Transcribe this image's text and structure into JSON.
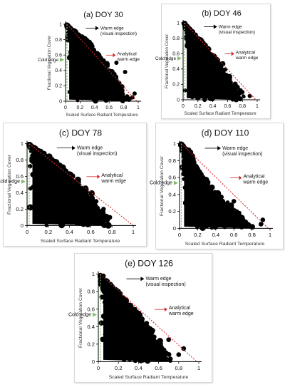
{
  "chart_data": [
    {
      "type": "scatter",
      "title": "(a) DOY 30",
      "xlabel": "Scaled Surface Radiant Temperature",
      "ylabel": "Fractional Vegetation Cover",
      "xticks": [
        "0",
        "0.2",
        "0.4",
        "0.6",
        "0.8",
        "1"
      ],
      "yticks": [
        "0",
        "0.2",
        "0.4",
        "0.6",
        "0.8",
        "1"
      ],
      "xlim": [
        0,
        1
      ],
      "ylim": [
        0,
        1
      ],
      "point_cloud": {
        "lower_envelope_x": 0.02,
        "warm_limit": [
          [
            0.0,
            1.0
          ],
          [
            0.35,
            0.75
          ],
          [
            0.6,
            0.45
          ],
          [
            0.78,
            0.2
          ],
          [
            0.88,
            0.05
          ],
          [
            0.92,
            0.0
          ]
        ]
      },
      "outliers": [
        [
          0.82,
          0.38
        ],
        [
          0.7,
          0.5
        ],
        [
          0.92,
          0.05
        ],
        [
          0.95,
          0.1
        ]
      ],
      "warm_edge_visual": [
        [
          0.02,
          1.0
        ],
        [
          0.95,
          0.0
        ]
      ],
      "warm_edge_analytical": [
        [
          0.02,
          1.0
        ],
        [
          0.98,
          0.0
        ]
      ],
      "annotations": {
        "warm_edge": "Warm edge (visual inspection)",
        "analytical": "Analytical warm edge",
        "cold_edge": "Cold edge"
      }
    },
    {
      "type": "scatter",
      "title": "(b) DOY 46",
      "xlabel": "Scaled Surface Radiant Temperature",
      "ylabel": "Fractional Vegetation Cover",
      "xticks": [
        "0",
        "0.2",
        "0.4",
        "0.6",
        "0.8",
        "1"
      ],
      "yticks": [
        "0",
        "0.2",
        "0.4",
        "0.6",
        "0.8",
        "1"
      ],
      "xlim": [
        0,
        1
      ],
      "ylim": [
        0,
        1
      ],
      "point_cloud": {
        "lower_envelope_x": 0.02,
        "warm_limit": [
          [
            0.0,
            1.0
          ],
          [
            0.3,
            0.72
          ],
          [
            0.55,
            0.45
          ],
          [
            0.72,
            0.2
          ],
          [
            0.82,
            0.05
          ],
          [
            0.85,
            0.0
          ]
        ]
      },
      "outliers": [
        [
          0.62,
          0.3
        ],
        [
          0.8,
          0.1
        ],
        [
          0.9,
          0.05
        ]
      ],
      "warm_edge_visual": [
        [
          0.02,
          1.0
        ],
        [
          0.9,
          0.0
        ]
      ],
      "warm_edge_analytical": [
        [
          0.02,
          1.0
        ],
        [
          0.98,
          0.0
        ]
      ],
      "annotations": {
        "warm_edge": "Warm edge (visual inspection)",
        "analytical": "Analytical warm edge",
        "cold_edge": "Cold edge"
      }
    },
    {
      "type": "scatter",
      "title": "(c) DOY 78",
      "xlabel": "Scaled Surface Radiant Temperature",
      "ylabel": "Fractional Vegetation Cover",
      "xticks": [
        "0",
        "0.2",
        "0.4",
        "0.6",
        "0.8",
        "1"
      ],
      "yticks": [
        "0",
        "0.2",
        "0.4",
        "0.6",
        "0.8",
        "1"
      ],
      "xlim": [
        0,
        1
      ],
      "ylim": [
        0,
        1
      ],
      "point_cloud": {
        "lower_envelope_x": 0.02,
        "warm_limit": [
          [
            0.0,
            1.0
          ],
          [
            0.2,
            0.85
          ],
          [
            0.45,
            0.6
          ],
          [
            0.62,
            0.38
          ],
          [
            0.72,
            0.18
          ],
          [
            0.78,
            0.05
          ],
          [
            0.8,
            0.0
          ]
        ]
      },
      "outliers": [
        [
          0.78,
          0.1
        ],
        [
          0.72,
          0.2
        ],
        [
          0.03,
          0.98
        ],
        [
          0.08,
          0.93
        ]
      ],
      "warm_edge_visual": [
        [
          0.02,
          1.0
        ],
        [
          0.82,
          0.0
        ]
      ],
      "warm_edge_analytical": [
        [
          0.02,
          1.0
        ],
        [
          1.0,
          0.0
        ]
      ],
      "annotations": {
        "warm_edge": "Warm edge (visual inspection)",
        "analytical": "Analytical warm edge",
        "cold_edge": "Cold edge"
      }
    },
    {
      "type": "scatter",
      "title": "(d) DOY 110",
      "xlabel": "Scaled Surface Radiant Temperature",
      "ylabel": "Fractional Vegetation Cover",
      "xticks": [
        "0",
        "0.2",
        "0.4",
        "0.6",
        "0.8",
        "1"
      ],
      "yticks": [
        "0",
        "0.2",
        "0.4",
        "0.6",
        "0.8",
        "1"
      ],
      "xlim": [
        0,
        1
      ],
      "ylim": [
        0,
        1
      ],
      "point_cloud": {
        "lower_envelope_x": 0.02,
        "warm_limit": [
          [
            0.0,
            1.0
          ],
          [
            0.12,
            0.9
          ],
          [
            0.2,
            0.7
          ],
          [
            0.35,
            0.5
          ],
          [
            0.5,
            0.35
          ],
          [
            0.65,
            0.2
          ],
          [
            0.8,
            0.05
          ],
          [
            0.85,
            0.0
          ]
        ]
      },
      "outliers": [
        [
          0.6,
          0.32
        ],
        [
          0.9,
          0.05
        ],
        [
          0.92,
          0.1
        ],
        [
          0.05,
          0.95
        ]
      ],
      "warm_edge_visual": [
        [
          0.02,
          1.0
        ],
        [
          0.9,
          0.0
        ]
      ],
      "warm_edge_analytical": [
        [
          0.02,
          1.0
        ],
        [
          0.98,
          0.0
        ]
      ],
      "annotations": {
        "warm_edge": "Warm edge (visual inspection)",
        "analytical": "Analytical warm edge",
        "cold_edge": "Cold edge"
      }
    },
    {
      "type": "scatter",
      "title": "(e) DOY 126",
      "xlabel": "Scaled Surface Radiant Temperature",
      "ylabel": "Fractional Vegetation Cover",
      "xticks": [
        "0",
        "0.2",
        "0.4",
        "0.6",
        "0.8",
        "1"
      ],
      "yticks": [
        "0",
        "0.2",
        "0.4",
        "0.6",
        "0.8",
        "1"
      ],
      "xlim": [
        0,
        1
      ],
      "ylim": [
        0,
        1
      ],
      "point_cloud": {
        "lower_envelope_x": 0.02,
        "warm_limit": [
          [
            0.0,
            1.0
          ],
          [
            0.2,
            0.8
          ],
          [
            0.4,
            0.55
          ],
          [
            0.55,
            0.35
          ],
          [
            0.65,
            0.2
          ],
          [
            0.72,
            0.05
          ],
          [
            0.75,
            0.0
          ]
        ]
      },
      "outliers": [
        [
          0.05,
          0.98
        ],
        [
          0.85,
          0.15
        ],
        [
          0.8,
          0.08
        ],
        [
          0.7,
          0.25
        ]
      ],
      "warm_edge_visual": [
        [
          0.02,
          1.0
        ],
        [
          0.8,
          0.0
        ]
      ],
      "warm_edge_analytical": [
        [
          0.02,
          1.0
        ],
        [
          0.98,
          0.0
        ]
      ],
      "annotations": {
        "warm_edge": "Warm edge (visual inspection)",
        "analytical": "Analytical warm edge",
        "cold_edge": "Cold edge"
      }
    }
  ],
  "colors": {
    "points": "#000000",
    "analytical_line": "#d9262a",
    "cold_edge_line": "#7fbf6a",
    "axis": "#000000"
  }
}
